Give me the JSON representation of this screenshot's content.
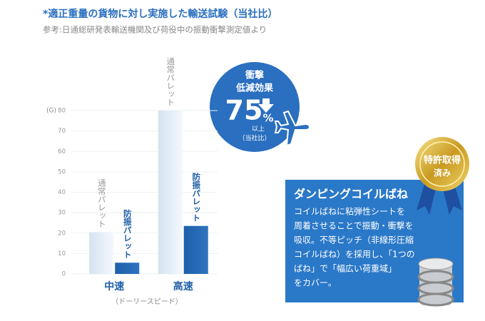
{
  "chart_data": {
    "type": "bar",
    "title": "*適正重量の貨物に対し実施した輸送試験（当社比）",
    "subtitle": "参考:日通総研発表輸送機関及び荷役中の振動衝撃測定値より",
    "y_label": "(G)",
    "x_label": "（ドーリースピード）",
    "categories": [
      "中速",
      "高速"
    ],
    "series": [
      {
        "name": "通常パレット",
        "color": "#d4e3f1",
        "values": [
          20.5,
          80
        ]
      },
      {
        "name": "防振パレット",
        "color": "#1f5fa8",
        "values": [
          5.5,
          23.5
        ]
      }
    ],
    "ylim": [
      0,
      80
    ],
    "yticks": [
      0,
      10,
      20,
      30,
      40,
      50,
      60,
      70,
      80
    ],
    "grid": true
  },
  "badge": {
    "line1": "衝撃",
    "line2": "低減効果",
    "number": "75",
    "unit": "%",
    "note1": "以上",
    "note2": "（当社比）"
  },
  "medal": {
    "line1": "特許取得",
    "line2": "済み"
  },
  "feature": {
    "title": "ダンピングコイルばね",
    "lines": [
      "コイルばねに粘弾性シートを",
      "周着させることで振動・衝撃を",
      "吸収。不等ピッチ（非線形圧縮",
      "コイルばね）を採用し、「1つの",
      "ばね」で「幅広い荷重域」",
      "をカバー。"
    ]
  }
}
